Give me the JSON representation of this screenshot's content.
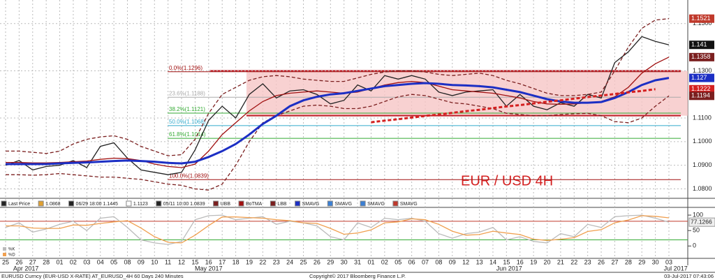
{
  "chart_data": [
    {
      "type": "line",
      "title": "EUR / USD 4H",
      "categories": [
        "25",
        "26",
        "27",
        "28",
        "01",
        "02",
        "03",
        "04",
        "05",
        "08",
        "09",
        "10",
        "11",
        "12",
        "15",
        "16",
        "17",
        "18",
        "19",
        "22",
        "23",
        "24",
        "25",
        "26",
        "29",
        "30",
        "31",
        "01",
        "02",
        "05",
        "06",
        "07",
        "08",
        "09",
        "12",
        "13",
        "14",
        "15",
        "16",
        "19",
        "20",
        "21",
        "22",
        "23",
        "26",
        "27",
        "28",
        "29",
        "30",
        "03"
      ],
      "months": [
        "Apr 2017",
        "May 2017",
        "Jun 2017",
        "Jul 2017"
      ],
      "series": [
        {
          "name": "Last Price",
          "color": "#222222",
          "values": [
            1.09,
            1.092,
            1.088,
            1.0895,
            1.09,
            1.092,
            1.089,
            1.098,
            1.0995,
            1.093,
            1.088,
            1.087,
            1.086,
            1.087,
            1.0965,
            1.109,
            1.115,
            1.11,
            1.12,
            1.1245,
            1.1185,
            1.1215,
            1.122,
            1.12,
            1.116,
            1.1175,
            1.124,
            1.1215,
            1.128,
            1.1265,
            1.128,
            1.1265,
            1.121,
            1.1195,
            1.121,
            1.1215,
            1.122,
            1.115,
            1.12,
            1.115,
            1.1135,
            1.1165,
            1.115,
            1.12,
            1.1185,
            1.1335,
            1.138,
            1.1445,
            1.1425,
            1.141
          ]
        },
        {
          "name": "UBB",
          "color": "#7b1f1f",
          "dashed": true,
          "values": [
            1.096,
            1.096,
            1.0955,
            1.095,
            1.096,
            1.099,
            1.101,
            1.102,
            1.1025,
            1.101,
            1.098,
            1.096,
            1.094,
            1.0945,
            1.101,
            1.112,
            1.12,
            1.123,
            1.126,
            1.1275,
            1.128,
            1.1275,
            1.1265,
            1.126,
            1.1255,
            1.1255,
            1.127,
            1.1285,
            1.1295,
            1.13,
            1.13,
            1.1295,
            1.1285,
            1.128,
            1.1285,
            1.129,
            1.128,
            1.126,
            1.1245,
            1.1225,
            1.1205,
            1.1195,
            1.1195,
            1.12,
            1.121,
            1.13,
            1.14,
            1.148,
            1.1515,
            1.1521
          ]
        },
        {
          "name": "BoTMA",
          "color": "#a01010",
          "values": [
            1.0912,
            1.0912,
            1.091,
            1.091,
            1.0912,
            1.0915,
            1.0918,
            1.0925,
            1.093,
            1.0928,
            1.092,
            1.0905,
            1.0895,
            1.089,
            1.0905,
            1.096,
            1.103,
            1.108,
            1.113,
            1.117,
            1.1195,
            1.1205,
            1.121,
            1.1215,
            1.121,
            1.1205,
            1.121,
            1.1225,
            1.124,
            1.125,
            1.1255,
            1.125,
            1.1235,
            1.122,
            1.1215,
            1.121,
            1.1205,
            1.1195,
            1.1185,
            1.117,
            1.116,
            1.1158,
            1.116,
            1.1165,
            1.117,
            1.119,
            1.123,
            1.129,
            1.133,
            1.1358
          ]
        },
        {
          "name": "LBB",
          "color": "#7b1f1f",
          "dashed": true,
          "values": [
            1.086,
            1.086,
            1.0858,
            1.086,
            1.0865,
            1.086,
            1.0855,
            1.085,
            1.085,
            1.0845,
            1.084,
            1.083,
            1.082,
            1.0815,
            1.08,
            1.0795,
            1.082,
            1.09,
            1.1,
            1.108,
            1.111,
            1.113,
            1.115,
            1.1155,
            1.115,
            1.114,
            1.114,
            1.115,
            1.117,
            1.119,
            1.12,
            1.1195,
            1.118,
            1.1165,
            1.116,
            1.115,
            1.114,
            1.112,
            1.1115,
            1.111,
            1.111,
            1.1115,
            1.1118,
            1.112,
            1.111,
            1.1085,
            1.108,
            1.11,
            1.115,
            1.1194
          ]
        },
        {
          "name": "SMAVG",
          "color": "#1c2fc4",
          "width": 3,
          "values": [
            1.0905,
            1.0905,
            1.0905,
            1.0905,
            1.0908,
            1.091,
            1.0912,
            1.0915,
            1.0918,
            1.092,
            1.0918,
            1.0915,
            1.091,
            1.0908,
            1.0915,
            1.0935,
            1.096,
            1.099,
            1.103,
            1.1075,
            1.111,
            1.115,
            1.1175,
            1.119,
            1.12,
            1.1205,
            1.1215,
            1.1225,
            1.1235,
            1.124,
            1.1245,
            1.1248,
            1.1245,
            1.124,
            1.1238,
            1.1235,
            1.123,
            1.122,
            1.121,
            1.1195,
            1.118,
            1.117,
            1.1165,
            1.1165,
            1.1168,
            1.1185,
            1.121,
            1.124,
            1.126,
            1.127
          ]
        },
        {
          "color": "#d42020",
          "dashed": true,
          "width": 3,
          "values": [
            null,
            null,
            null,
            null,
            null,
            null,
            null,
            null,
            null,
            null,
            null,
            null,
            null,
            null,
            null,
            null,
            null,
            null,
            null,
            null,
            null,
            null,
            null,
            null,
            null,
            null,
            null,
            1.1082,
            1.1089,
            1.1095,
            1.1102,
            1.1109,
            1.1115,
            1.1122,
            1.1129,
            1.1135,
            1.1142,
            1.1149,
            1.1155,
            1.1162,
            1.1169,
            1.1175,
            1.1182,
            1.1189,
            1.1195,
            1.1202,
            1.1209,
            1.1215,
            1.1222,
            null
          ]
        }
      ],
      "channel": [
        1.13,
        1.111
      ],
      "fibs": [
        {
          "value": 1.1296,
          "label": "0.0%(1.1296)"
        },
        {
          "value": 1.1188,
          "label": "23.6%(1.1188)"
        },
        {
          "value": 1.1121,
          "label": "38.2%(1.1121)"
        },
        {
          "value": 1.1068,
          "label": "50.0%(1.1068)"
        },
        {
          "value": 1.1014,
          "label": "61.8%(1.1014)"
        },
        {
          "value": 1.0839,
          "label": "100.0%(1.0839)"
        }
      ],
      "fib_colors": [
        "#a01010",
        "#aaaaaa",
        "#33aa33",
        "#33aacc",
        "#33aa33",
        "#a01010"
      ],
      "price_tags": {
        "values": [
          1.1521,
          1.141,
          1.1358,
          1.127,
          1.1222,
          1.1194
        ],
        "colors": [
          "#c0392b",
          "#111111",
          "#7b1f1f",
          "#1c2fc4",
          "#d42020",
          "#7b1f1f"
        ]
      },
      "ylim": [
        1.076,
        1.16
      ],
      "yticks": [
        {
          "value": 1.15,
          "label": "1.1500"
        },
        {
          "value": 1.13,
          "label": "1.1300"
        },
        {
          "value": 1.11,
          "label": "1.1100"
        },
        {
          "value": 1.1,
          "label": "1.1000"
        },
        {
          "value": 1.09,
          "label": "1.0900"
        },
        {
          "value": 1.08,
          "label": "1.0800"
        }
      ],
      "grid": true,
      "legend": [
        "Last Price",
        "1.0868",
        "06/29 18:00 1.1445",
        "1.1123",
        "05/11 10:00 1.0839",
        "UBB",
        "BoTMA",
        "LBB",
        "SMAVG",
        "SMAVG",
        "SMAVG",
        "SMAVG"
      ],
      "legend_colors": [
        "#222222",
        "#e0a030",
        "#222222",
        "#ffffff",
        "#222222",
        "#7b1f1f",
        "#a01010",
        "#7b1f1f",
        "#1c2fc4",
        "#3a7fd4",
        "#3a7fd4",
        "#c0392b"
      ]
    },
    {
      "type": "line",
      "series": [
        {
          "name": "%K",
          "color": "#bbbbbb",
          "values": [
            60,
            75,
            45,
            55,
            70,
            80,
            50,
            90,
            95,
            60,
            20,
            10,
            5,
            15,
            85,
            98,
            100,
            85,
            90,
            95,
            70,
            80,
            75,
            65,
            30,
            20,
            75,
            60,
            90,
            85,
            90,
            80,
            40,
            25,
            40,
            45,
            60,
            20,
            30,
            15,
            10,
            40,
            30,
            70,
            60,
            95,
            98,
            100,
            90,
            77.1266
          ],
          "value_labels": [
            null,
            null,
            null,
            null,
            null,
            null,
            null,
            null,
            null,
            null,
            null,
            null,
            null,
            null,
            null,
            null,
            null,
            null,
            null,
            null,
            null,
            null,
            null,
            null,
            null,
            null,
            null,
            null,
            null,
            null,
            null,
            null,
            null,
            null,
            null,
            null,
            null,
            null,
            null,
            null,
            null,
            null,
            null,
            null,
            null,
            null,
            null,
            null,
            null,
            "77.1266"
          ]
        },
        {
          "name": "%D",
          "color": "#f0a050",
          "values": [
            65,
            65,
            58,
            57,
            57,
            68,
            67,
            73,
            78,
            82,
            58,
            30,
            12,
            10,
            35,
            66,
            94,
            94,
            92,
            90,
            85,
            82,
            75,
            73,
            57,
            38,
            42,
            52,
            75,
            78,
            88,
            85,
            70,
            48,
            35,
            37,
            48,
            42,
            37,
            22,
            18,
            22,
            27,
            47,
            53,
            75,
            84,
            98,
            96,
            91
          ]
        }
      ],
      "levels": [
        80,
        20
      ],
      "level_colors": [
        "#c0392b",
        "#33aa33"
      ],
      "ylim": [
        -40,
        125
      ],
      "yticks": [
        100,
        50,
        0
      ]
    }
  ],
  "footer": {
    "left": "EURUSD Curncy (EUR-USD X-RATE) AT_EURUSD_4H 60 Days 240 Minutes",
    "center": "Copyright© 2017 Bloomberg Finance L.P.",
    "right": "03-Jul-2017 07:43:06"
  }
}
